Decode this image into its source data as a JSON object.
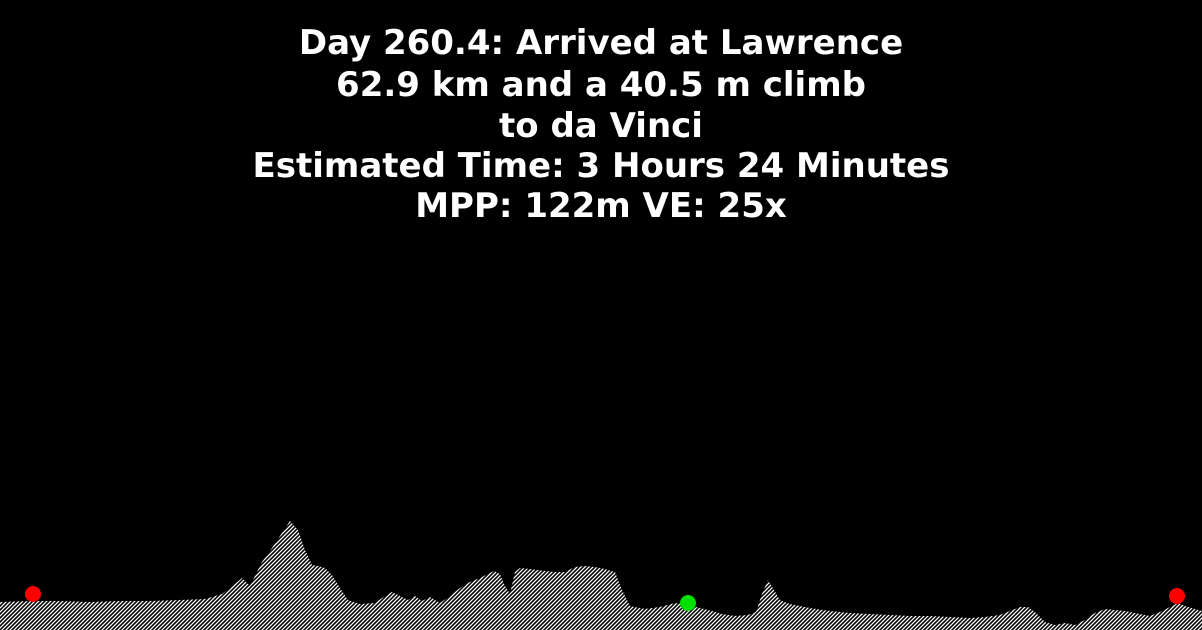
{
  "header": {
    "line1": "Day 260.4: Arrived at Lawrence",
    "line2": "62.9 km and a 40.5 m climb",
    "line3": "to da Vinci",
    "line4": "Estimated Time: 3 Hours 24 Minutes",
    "line5": "MPP: 122m VE: 25x"
  },
  "colors": {
    "background": "#000000",
    "text": "#ffffff",
    "terrain": "#ffffff",
    "start_marker": "#ff0000",
    "current_marker": "#00e000",
    "end_marker": "#ff0000"
  },
  "markers": [
    {
      "name": "start-marker",
      "color": "#ff0000"
    },
    {
      "name": "current-position-marker",
      "color": "#00e000"
    },
    {
      "name": "end-marker",
      "color": "#ff0000"
    }
  ]
}
